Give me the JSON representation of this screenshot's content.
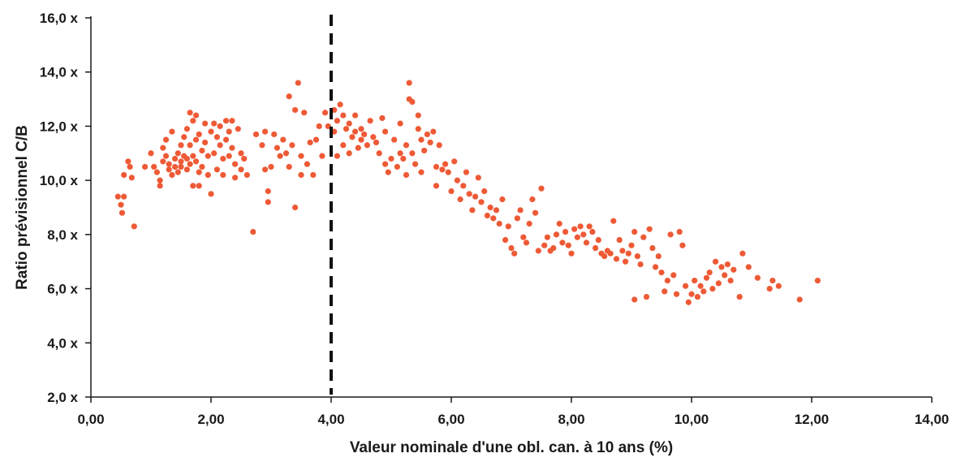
{
  "chart_data": {
    "type": "scatter",
    "title": "",
    "xlabel": "Valeur nominale d'une obl. can. à 10 ans (%)",
    "ylabel": "Ratio prévisionnel C/B",
    "xlim": [
      0,
      14
    ],
    "ylim": [
      2,
      16
    ],
    "x_ticks": [
      "0,00",
      "2,00",
      "4,00",
      "6,00",
      "8,00",
      "10,00",
      "12,00",
      "14,00"
    ],
    "y_ticks": [
      "2,0 x",
      "4,0 x",
      "6,0 x",
      "8,0 x",
      "10,0 x",
      "12,0 x",
      "14,0 x",
      "16,0 x"
    ],
    "reference_line_x": 4.0,
    "grid": false,
    "colors": {
      "points": "#ee5a36",
      "reference_line": "#111111",
      "axis": "#1a1a1a"
    },
    "series": [
      {
        "values": [
          [
            0.45,
            9.4
          ],
          [
            0.5,
            9.1
          ],
          [
            0.52,
            8.8
          ],
          [
            0.55,
            9.4
          ],
          [
            0.55,
            10.2
          ],
          [
            0.62,
            10.7
          ],
          [
            0.65,
            10.5
          ],
          [
            0.68,
            10.1
          ],
          [
            0.72,
            8.3
          ],
          [
            0.9,
            10.5
          ],
          [
            1.0,
            11.0
          ],
          [
            1.05,
            10.5
          ],
          [
            1.1,
            10.3
          ],
          [
            1.15,
            10.0
          ],
          [
            1.15,
            9.8
          ],
          [
            1.2,
            10.7
          ],
          [
            1.2,
            11.2
          ],
          [
            1.25,
            10.9
          ],
          [
            1.25,
            11.5
          ],
          [
            1.3,
            10.6
          ],
          [
            1.3,
            10.4
          ],
          [
            1.35,
            11.8
          ],
          [
            1.35,
            10.2
          ],
          [
            1.4,
            10.8
          ],
          [
            1.4,
            10.5
          ],
          [
            1.45,
            11.0
          ],
          [
            1.45,
            10.3
          ],
          [
            1.5,
            10.7
          ],
          [
            1.5,
            11.3
          ],
          [
            1.5,
            10.5
          ],
          [
            1.55,
            11.6
          ],
          [
            1.55,
            10.9
          ],
          [
            1.6,
            10.4
          ],
          [
            1.6,
            10.8
          ],
          [
            1.6,
            11.9
          ],
          [
            1.65,
            12.5
          ],
          [
            1.65,
            11.3
          ],
          [
            1.65,
            10.6
          ],
          [
            1.7,
            12.2
          ],
          [
            1.7,
            10.9
          ],
          [
            1.7,
            9.8
          ],
          [
            1.75,
            12.4
          ],
          [
            1.75,
            11.5
          ],
          [
            1.75,
            10.7
          ],
          [
            1.8,
            11.7
          ],
          [
            1.8,
            10.3
          ],
          [
            1.8,
            9.8
          ],
          [
            1.85,
            11.1
          ],
          [
            1.85,
            10.5
          ],
          [
            1.9,
            12.1
          ],
          [
            1.9,
            11.4
          ],
          [
            1.95,
            10.9
          ],
          [
            1.95,
            10.2
          ],
          [
            2.0,
            11.8
          ],
          [
            2.0,
            9.5
          ],
          [
            2.05,
            12.1
          ],
          [
            2.05,
            11.0
          ],
          [
            2.1,
            11.6
          ],
          [
            2.1,
            10.4
          ],
          [
            2.15,
            12.0
          ],
          [
            2.15,
            11.3
          ],
          [
            2.2,
            10.8
          ],
          [
            2.2,
            10.2
          ],
          [
            2.25,
            12.2
          ],
          [
            2.25,
            11.5
          ],
          [
            2.3,
            11.8
          ],
          [
            2.3,
            10.9
          ],
          [
            2.35,
            12.2
          ],
          [
            2.35,
            11.2
          ],
          [
            2.4,
            10.6
          ],
          [
            2.4,
            10.1
          ],
          [
            2.45,
            11.9
          ],
          [
            2.5,
            11.0
          ],
          [
            2.5,
            10.4
          ],
          [
            2.55,
            10.8
          ],
          [
            2.6,
            10.2
          ],
          [
            2.7,
            8.1
          ],
          [
            2.75,
            11.7
          ],
          [
            2.85,
            11.3
          ],
          [
            2.9,
            11.8
          ],
          [
            2.9,
            10.4
          ],
          [
            2.95,
            9.6
          ],
          [
            2.95,
            9.2
          ],
          [
            3.0,
            10.5
          ],
          [
            3.05,
            11.7
          ],
          [
            3.1,
            11.2
          ],
          [
            3.15,
            10.9
          ],
          [
            3.2,
            11.5
          ],
          [
            3.25,
            11.0
          ],
          [
            3.3,
            10.5
          ],
          [
            3.3,
            13.1
          ],
          [
            3.35,
            11.3
          ],
          [
            3.4,
            12.6
          ],
          [
            3.4,
            9.0
          ],
          [
            3.45,
            13.6
          ],
          [
            3.5,
            10.9
          ],
          [
            3.5,
            10.2
          ],
          [
            3.55,
            12.5
          ],
          [
            3.6,
            10.6
          ],
          [
            3.65,
            11.4
          ],
          [
            3.7,
            10.2
          ],
          [
            3.75,
            11.5
          ],
          [
            3.8,
            12.0
          ],
          [
            3.85,
            10.9
          ],
          [
            3.9,
            12.5
          ],
          [
            3.95,
            12.0
          ],
          [
            4.05,
            12.6
          ],
          [
            4.05,
            11.8
          ],
          [
            4.1,
            12.2
          ],
          [
            4.1,
            10.9
          ],
          [
            4.15,
            12.8
          ],
          [
            4.2,
            12.4
          ],
          [
            4.2,
            11.3
          ],
          [
            4.25,
            11.9
          ],
          [
            4.3,
            12.1
          ],
          [
            4.3,
            11.0
          ],
          [
            4.35,
            11.6
          ],
          [
            4.4,
            12.4
          ],
          [
            4.4,
            11.8
          ],
          [
            4.45,
            11.2
          ],
          [
            4.5,
            11.9
          ],
          [
            4.5,
            11.5
          ],
          [
            4.55,
            11.7
          ],
          [
            4.6,
            11.3
          ],
          [
            4.65,
            12.2
          ],
          [
            4.7,
            11.6
          ],
          [
            4.75,
            11.4
          ],
          [
            4.8,
            11.0
          ],
          [
            4.85,
            12.3
          ],
          [
            4.9,
            11.8
          ],
          [
            4.9,
            10.6
          ],
          [
            4.95,
            10.3
          ],
          [
            5.0,
            10.8
          ],
          [
            5.05,
            11.5
          ],
          [
            5.1,
            10.5
          ],
          [
            5.15,
            11.0
          ],
          [
            5.15,
            12.1
          ],
          [
            5.2,
            10.8
          ],
          [
            5.25,
            11.3
          ],
          [
            5.25,
            10.2
          ],
          [
            5.3,
            13.0
          ],
          [
            5.3,
            13.6
          ],
          [
            5.35,
            12.9
          ],
          [
            5.35,
            11.0
          ],
          [
            5.4,
            10.6
          ],
          [
            5.45,
            12.4
          ],
          [
            5.45,
            11.9
          ],
          [
            5.5,
            11.5
          ],
          [
            5.5,
            10.3
          ],
          [
            5.55,
            11.1
          ],
          [
            5.6,
            11.7
          ],
          [
            5.65,
            11.4
          ],
          [
            5.7,
            11.8
          ],
          [
            5.75,
            10.5
          ],
          [
            5.75,
            9.8
          ],
          [
            5.8,
            11.3
          ],
          [
            5.85,
            10.4
          ],
          [
            5.9,
            10.6
          ],
          [
            5.95,
            10.3
          ],
          [
            6.0,
            9.6
          ],
          [
            6.05,
            10.7
          ],
          [
            6.1,
            10.0
          ],
          [
            6.15,
            9.3
          ],
          [
            6.2,
            9.8
          ],
          [
            6.25,
            10.3
          ],
          [
            6.3,
            9.5
          ],
          [
            6.35,
            8.9
          ],
          [
            6.4,
            9.4
          ],
          [
            6.45,
            10.1
          ],
          [
            6.5,
            9.2
          ],
          [
            6.55,
            9.6
          ],
          [
            6.6,
            8.7
          ],
          [
            6.65,
            9.0
          ],
          [
            6.7,
            8.6
          ],
          [
            6.75,
            8.9
          ],
          [
            6.8,
            8.4
          ],
          [
            6.85,
            9.3
          ],
          [
            6.9,
            7.8
          ],
          [
            6.95,
            8.3
          ],
          [
            7.0,
            7.5
          ],
          [
            7.05,
            7.3
          ],
          [
            7.1,
            8.6
          ],
          [
            7.15,
            8.9
          ],
          [
            7.2,
            7.9
          ],
          [
            7.25,
            7.7
          ],
          [
            7.3,
            8.4
          ],
          [
            7.35,
            9.3
          ],
          [
            7.4,
            8.8
          ],
          [
            7.45,
            7.4
          ],
          [
            7.5,
            9.7
          ],
          [
            7.55,
            7.6
          ],
          [
            7.6,
            7.9
          ],
          [
            7.65,
            7.4
          ],
          [
            7.7,
            7.5
          ],
          [
            7.75,
            8.0
          ],
          [
            7.8,
            8.4
          ],
          [
            7.85,
            7.7
          ],
          [
            7.9,
            8.1
          ],
          [
            7.95,
            7.6
          ],
          [
            8.0,
            7.3
          ],
          [
            8.05,
            8.2
          ],
          [
            8.1,
            7.9
          ],
          [
            8.15,
            8.3
          ],
          [
            8.2,
            8.0
          ],
          [
            8.25,
            7.7
          ],
          [
            8.3,
            8.3
          ],
          [
            8.35,
            8.1
          ],
          [
            8.4,
            7.5
          ],
          [
            8.45,
            7.8
          ],
          [
            8.5,
            7.3
          ],
          [
            8.55,
            7.2
          ],
          [
            8.6,
            7.4
          ],
          [
            8.65,
            7.3
          ],
          [
            8.7,
            8.5
          ],
          [
            8.75,
            7.1
          ],
          [
            8.8,
            7.8
          ],
          [
            8.85,
            7.4
          ],
          [
            8.9,
            7.0
          ],
          [
            8.95,
            7.3
          ],
          [
            9.0,
            7.6
          ],
          [
            9.05,
            8.1
          ],
          [
            9.05,
            5.6
          ],
          [
            9.1,
            7.2
          ],
          [
            9.15,
            6.9
          ],
          [
            9.2,
            7.9
          ],
          [
            9.25,
            5.7
          ],
          [
            9.3,
            8.2
          ],
          [
            9.35,
            7.5
          ],
          [
            9.4,
            6.8
          ],
          [
            9.45,
            7.2
          ],
          [
            9.5,
            6.6
          ],
          [
            9.55,
            5.9
          ],
          [
            9.6,
            6.3
          ],
          [
            9.65,
            8.0
          ],
          [
            9.7,
            6.5
          ],
          [
            9.75,
            5.8
          ],
          [
            9.8,
            8.1
          ],
          [
            9.85,
            7.6
          ],
          [
            9.9,
            6.1
          ],
          [
            9.95,
            5.5
          ],
          [
            10.0,
            5.8
          ],
          [
            10.05,
            6.3
          ],
          [
            10.1,
            5.7
          ],
          [
            10.15,
            6.1
          ],
          [
            10.2,
            5.9
          ],
          [
            10.25,
            6.4
          ],
          [
            10.3,
            6.6
          ],
          [
            10.35,
            6.0
          ],
          [
            10.4,
            7.0
          ],
          [
            10.45,
            6.2
          ],
          [
            10.5,
            6.8
          ],
          [
            10.55,
            6.5
          ],
          [
            10.6,
            6.9
          ],
          [
            10.65,
            6.3
          ],
          [
            10.7,
            6.7
          ],
          [
            10.8,
            5.7
          ],
          [
            10.85,
            7.3
          ],
          [
            10.95,
            6.8
          ],
          [
            11.1,
            6.4
          ],
          [
            11.3,
            6.0
          ],
          [
            11.35,
            6.3
          ],
          [
            11.45,
            6.1
          ],
          [
            11.8,
            5.6
          ],
          [
            12.1,
            6.3
          ]
        ]
      }
    ]
  }
}
